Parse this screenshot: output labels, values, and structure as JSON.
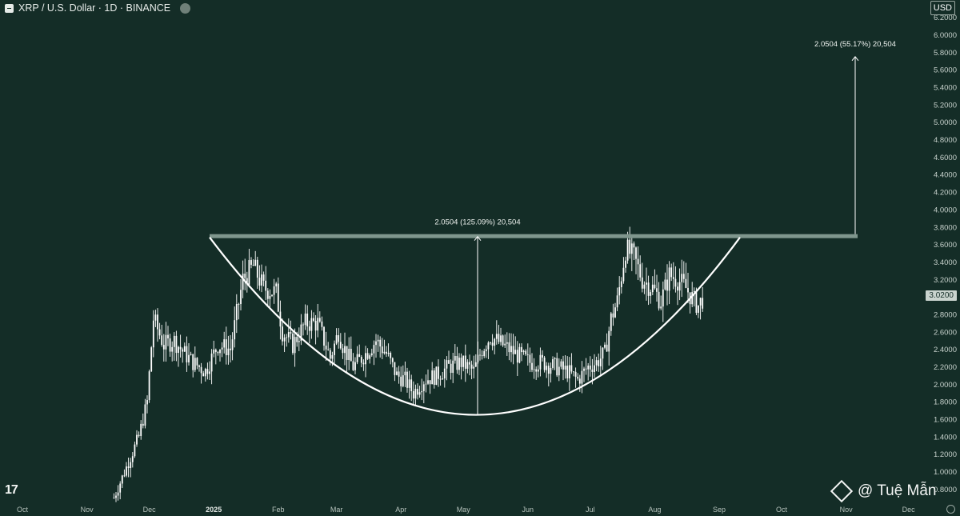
{
  "header": {
    "symbol_title": "XRP / U.S. Dollar · 1D · BINANCE",
    "currency_button": "USD"
  },
  "annotations": {
    "inner_measure": "2.0504 (125.09%) 20,504",
    "target_measure": "2.0504 (55.17%) 20,504"
  },
  "current_price_label": "3.0200",
  "watermark_text": "@ Tuệ Mẫn",
  "logo_text": "17",
  "icons": {
    "symbol": "xrp-symbol-icon",
    "share": "share-icon",
    "watermark": "binance-diamond-icon",
    "settings": "gear-icon"
  },
  "colors": {
    "background": "#142d27",
    "candles": "#ffffff",
    "resistance_band": "#7f968d",
    "text": "#e6ebe8"
  },
  "chart_data": {
    "type": "candlestick",
    "title": "XRP / U.S. Dollar · 1D · BINANCE",
    "y_ticks": [
      "6.2000",
      "6.0000",
      "5.8000",
      "5.6000",
      "5.4000",
      "5.2000",
      "5.0000",
      "4.8000",
      "4.6000",
      "4.4000",
      "4.2000",
      "4.0000",
      "3.8000",
      "3.6000",
      "3.4000",
      "3.2000",
      "3.0000",
      "2.8000",
      "2.6000",
      "2.4000",
      "2.2000",
      "2.0000",
      "1.8000",
      "1.6000",
      "1.4000",
      "1.2000",
      "1.0000",
      "0.8000"
    ],
    "x_ticks": [
      "Oct",
      "Nov",
      "Dec",
      "2025",
      "Feb",
      "Mar",
      "Apr",
      "May",
      "Jun",
      "Jul",
      "Aug",
      "Sep",
      "Oct",
      "Nov",
      "Dec"
    ],
    "ylim": [
      0.65,
      6.3
    ],
    "resistance_level": 3.7,
    "cup_bottom": 1.65,
    "current_price": 3.02,
    "target_price": 5.75,
    "price_path": [
      [
        "2024-11-14",
        0.7
      ],
      [
        "2024-11-20",
        1.05
      ],
      [
        "2024-11-26",
        1.4
      ],
      [
        "2024-11-30",
        1.8
      ],
      [
        "2024-12-03",
        2.75
      ],
      [
        "2024-12-08",
        2.45
      ],
      [
        "2024-12-13",
        2.5
      ],
      [
        "2024-12-18",
        2.35
      ],
      [
        "2024-12-22",
        2.25
      ],
      [
        "2024-12-28",
        2.15
      ],
      [
        "2025-01-03",
        2.45
      ],
      [
        "2025-01-09",
        2.4
      ],
      [
        "2025-01-15",
        3.2
      ],
      [
        "2025-01-20",
        3.35
      ],
      [
        "2025-01-25",
        3.1
      ],
      [
        "2025-01-31",
        3.05
      ],
      [
        "2025-02-03",
        2.6
      ],
      [
        "2025-02-08",
        2.45
      ],
      [
        "2025-02-14",
        2.7
      ],
      [
        "2025-02-20",
        2.7
      ],
      [
        "2025-02-26",
        2.3
      ],
      [
        "2025-03-02",
        2.6
      ],
      [
        "2025-03-04",
        2.45
      ],
      [
        "2025-03-09",
        2.2
      ],
      [
        "2025-03-15",
        2.35
      ],
      [
        "2025-03-20",
        2.5
      ],
      [
        "2025-03-25",
        2.35
      ],
      [
        "2025-03-30",
        2.1
      ],
      [
        "2025-04-03",
        2.05
      ],
      [
        "2025-04-07",
        1.9
      ],
      [
        "2025-04-12",
        2.05
      ],
      [
        "2025-04-18",
        2.1
      ],
      [
        "2025-04-24",
        2.2
      ],
      [
        "2025-04-30",
        2.25
      ],
      [
        "2025-05-06",
        2.15
      ],
      [
        "2025-05-10",
        2.4
      ],
      [
        "2025-05-14",
        2.55
      ],
      [
        "2025-05-20",
        2.45
      ],
      [
        "2025-05-26",
        2.35
      ],
      [
        "2025-06-02",
        2.25
      ],
      [
        "2025-06-08",
        2.25
      ],
      [
        "2025-06-14",
        2.2
      ],
      [
        "2025-06-20",
        2.15
      ],
      [
        "2025-06-25",
        2.05
      ],
      [
        "2025-06-30",
        2.2
      ],
      [
        "2025-07-04",
        2.25
      ],
      [
        "2025-07-08",
        2.35
      ],
      [
        "2025-07-11",
        2.75
      ],
      [
        "2025-07-14",
        2.95
      ],
      [
        "2025-07-18",
        3.55
      ],
      [
        "2025-07-22",
        3.45
      ],
      [
        "2025-07-26",
        3.2
      ],
      [
        "2025-07-31",
        3.1
      ],
      [
        "2025-08-04",
        2.95
      ],
      [
        "2025-08-08",
        3.25
      ],
      [
        "2025-08-12",
        3.2
      ],
      [
        "2025-08-16",
        3.1
      ],
      [
        "2025-08-20",
        2.95
      ],
      [
        "2025-08-22",
        2.9
      ],
      [
        "2025-08-25",
        3.02
      ]
    ]
  }
}
